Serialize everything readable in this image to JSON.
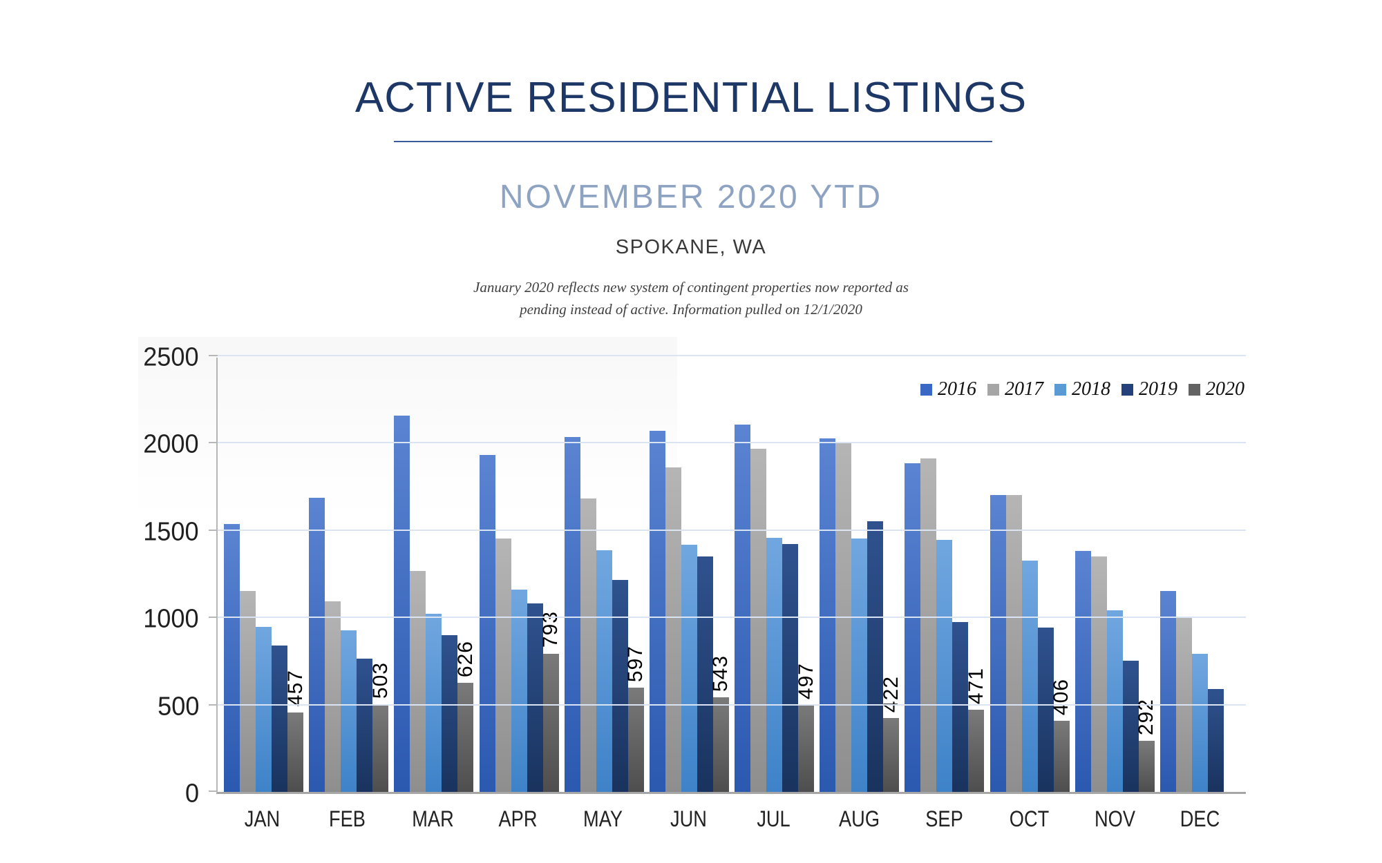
{
  "page": {
    "title": "ACTIVE RESIDENTIAL LISTINGS",
    "subtitle": "NOVEMBER 2020 YTD",
    "location": "SPOKANE, WA",
    "note_line1": "January 2020 reflects new system of contingent properties now reported as",
    "note_line2": "pending instead of active.  Information pulled on 12/1/2020"
  },
  "chart_data": {
    "type": "bar",
    "title": "ACTIVE RESIDENTIAL LISTINGS — NOVEMBER 2020 YTD — SPOKANE, WA",
    "categories": [
      "JAN",
      "FEB",
      "MAR",
      "APR",
      "MAY",
      "JUN",
      "JUL",
      "AUG",
      "SEP",
      "OCT",
      "NOV",
      "DEC"
    ],
    "series": [
      {
        "name": "2016",
        "color": "#3a68c5",
        "color_top": "#5b84d2",
        "color_bottom": "#2b59b0",
        "values": [
          1535,
          1685,
          2155,
          1930,
          2035,
          2070,
          2105,
          2025,
          1885,
          1700,
          1380,
          1150
        ]
      },
      {
        "name": "2017",
        "color": "#a6a6a6",
        "color_top": "#b5b5b5",
        "color_bottom": "#8e8e8e",
        "values": [
          1150,
          1090,
          1265,
          1450,
          1680,
          1860,
          1965,
          2005,
          1910,
          1700,
          1350,
          1000
        ]
      },
      {
        "name": "2018",
        "color": "#5b9bd5",
        "color_top": "#71a7e0",
        "color_bottom": "#3e82c8",
        "values": [
          945,
          925,
          1020,
          1160,
          1385,
          1415,
          1455,
          1450,
          1445,
          1325,
          1040,
          790
        ]
      },
      {
        "name": "2019",
        "color": "#24417b",
        "color_top": "#2f528f",
        "color_bottom": "#19335e",
        "values": [
          840,
          765,
          900,
          1080,
          1215,
          1350,
          1420,
          1550,
          975,
          940,
          750,
          590
        ]
      },
      {
        "name": "2020",
        "color": "#636363",
        "color_top": "#7a7a7a",
        "color_bottom": "#4e4e4e",
        "labeled": true,
        "values": [
          457,
          503,
          626,
          793,
          597,
          543,
          497,
          422,
          471,
          406,
          292,
          null
        ]
      }
    ],
    "ylim": [
      0,
      2500
    ],
    "yticks": [
      2500,
      2000,
      1500,
      1000,
      500,
      0
    ],
    "grid": true,
    "legend_position": "top-right",
    "axis_colors": {
      "gridline": "#dbe4f3",
      "axis_line": "#a6a6a6"
    }
  }
}
